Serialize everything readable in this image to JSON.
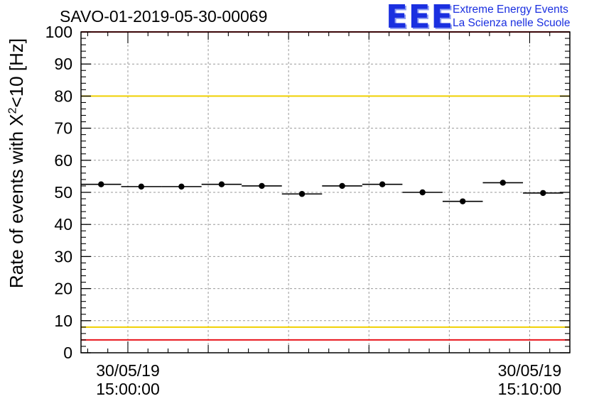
{
  "header": {
    "title": "SAVO-01-2019-05-30-00069",
    "logo_letters": "EEE",
    "logo_line1": "Extreme Energy Events",
    "logo_line2": "La Scienza nelle Scuole"
  },
  "chart_data": {
    "type": "scatter",
    "title": "SAVO-01-2019-05-30-00069",
    "ylabel_prefix": "Rate of events with X",
    "ylabel_sup": "2",
    "ylabel_suffix": "<10 [Hz]",
    "xlim": [
      "2019-05-30 14:58:50",
      "2019-05-30 15:11:00"
    ],
    "ylim": [
      0,
      100
    ],
    "yticks": [
      0,
      10,
      20,
      30,
      40,
      50,
      60,
      70,
      80,
      90,
      100
    ],
    "xticks": [
      {
        "x": "2019-05-30 15:00:00",
        "date": "30/05/19",
        "time": "15:00:00"
      },
      {
        "x": "2019-05-30 15:10:00",
        "date": "30/05/19",
        "time": "15:10:00"
      }
    ],
    "grid": true,
    "bin_width_s": 60,
    "points": [
      {
        "x": "2019-05-30 14:59:20",
        "y": 52.5
      },
      {
        "x": "2019-05-30 15:00:20",
        "y": 51.8
      },
      {
        "x": "2019-05-30 15:01:20",
        "y": 51.8
      },
      {
        "x": "2019-05-30 15:02:20",
        "y": 52.5
      },
      {
        "x": "2019-05-30 15:03:20",
        "y": 52.0
      },
      {
        "x": "2019-05-30 15:04:20",
        "y": 49.5
      },
      {
        "x": "2019-05-30 15:05:20",
        "y": 52.0
      },
      {
        "x": "2019-05-30 15:06:20",
        "y": 52.5
      },
      {
        "x": "2019-05-30 15:07:20",
        "y": 50.0
      },
      {
        "x": "2019-05-30 15:08:20",
        "y": 47.2
      },
      {
        "x": "2019-05-30 15:09:20",
        "y": 53.0
      },
      {
        "x": "2019-05-30 15:10:20",
        "y": 49.8
      }
    ],
    "reference_lines": [
      {
        "y": 100,
        "color": "#e8141c"
      },
      {
        "y": 80,
        "color": "#f0d000"
      },
      {
        "y": 8,
        "color": "#f0d000"
      },
      {
        "y": 4,
        "color": "#e8141c"
      }
    ]
  }
}
